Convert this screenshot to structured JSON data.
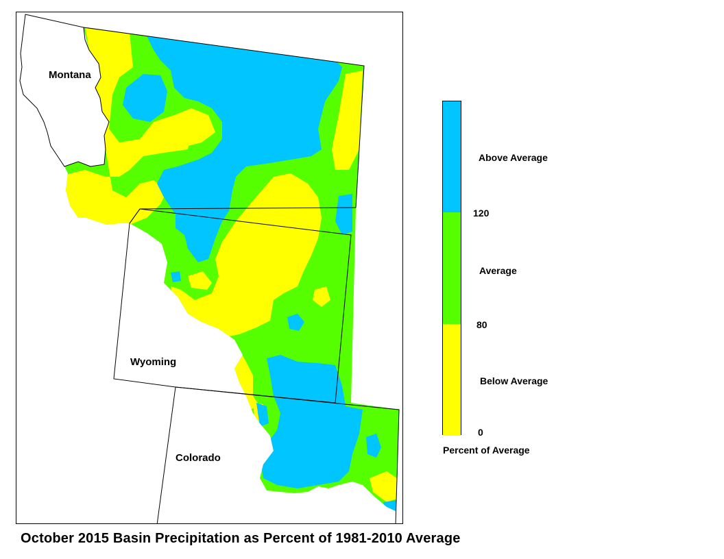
{
  "title": "October 2015 Basin Precipitation as Percent of 1981-2010 Average",
  "states": {
    "montana": "Montana",
    "wyoming": "Wyoming",
    "colorado": "Colorado"
  },
  "legend": {
    "title": "Percent of Average",
    "categories": [
      {
        "label": "Above Average",
        "range": "above 120",
        "color": "#00c5ff"
      },
      {
        "label": "Average",
        "range": "80-120",
        "color": "#55ff00"
      },
      {
        "label": "Below Average",
        "range": "0-80",
        "color": "#ffff00"
      }
    ],
    "breaks": [
      "120",
      "80",
      "0"
    ]
  },
  "colors": {
    "above": "#00c5ff",
    "average": "#55ff00",
    "below": "#ffff00",
    "outline": "#000000"
  }
}
